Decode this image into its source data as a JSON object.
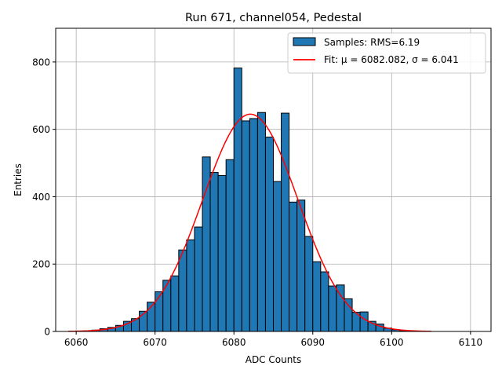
{
  "chart_data": {
    "type": "bar",
    "title": "Run 671, channel054, Pedestal",
    "xlabel": "ADC Counts",
    "ylabel": "Entries",
    "xlim": [
      6057.4,
      6112.6
    ],
    "ylim": [
      0,
      900
    ],
    "xticks": [
      6060,
      6070,
      6080,
      6090,
      6100,
      6110
    ],
    "yticks": [
      0,
      200,
      400,
      600,
      800
    ],
    "grid": true,
    "legend": {
      "position": "top-right",
      "hist_label": "Samples: RMS=6.19",
      "fit_label": "Fit: μ = 6082.082, σ = 6.041"
    },
    "histogram": {
      "bin_edges": [
        6059,
        6060,
        6061,
        6062,
        6063,
        6064,
        6065,
        6066,
        6067,
        6068,
        6069,
        6070,
        6071,
        6072,
        6073,
        6074,
        6075,
        6076,
        6077,
        6078,
        6079,
        6080,
        6081,
        6082,
        6083,
        6084,
        6085,
        6086,
        6087,
        6088,
        6089,
        6090,
        6091,
        6092,
        6093,
        6094,
        6095,
        6096,
        6097,
        6098,
        6099,
        6100,
        6101,
        6102,
        6103,
        6104,
        6105
      ],
      "counts": [
        0,
        1,
        2,
        4,
        8,
        12,
        18,
        30,
        38,
        60,
        87,
        118,
        152,
        165,
        242,
        272,
        310,
        518,
        472,
        463,
        510,
        782,
        625,
        632,
        650,
        577,
        445,
        648,
        384,
        390,
        282,
        207,
        177,
        135,
        138,
        97,
        57,
        58,
        30,
        22,
        10,
        5,
        2,
        1,
        0,
        0
      ],
      "fill_color": "#1f77b4",
      "edge_color": "#000000"
    },
    "fit": {
      "mu": 6082.082,
      "sigma": 6.041,
      "amplitude": 645,
      "x_range": [
        6059,
        6105
      ],
      "color": "#ff0000"
    }
  }
}
